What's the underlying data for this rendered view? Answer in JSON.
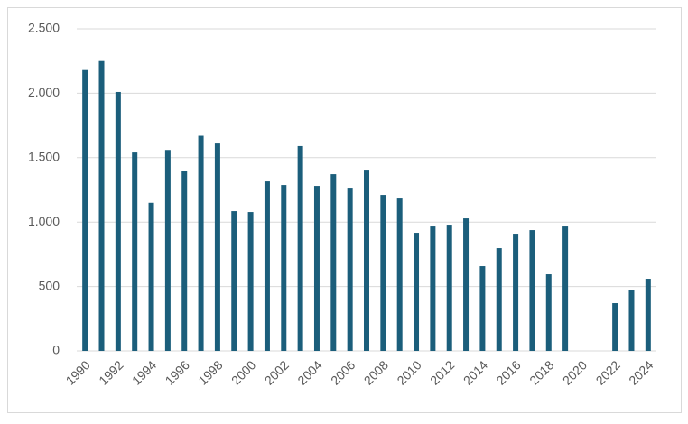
{
  "chart_data": {
    "type": "bar",
    "categories": [
      "1990",
      null,
      "1992",
      null,
      "1994",
      null,
      "1996",
      null,
      "1998",
      null,
      "2000",
      null,
      "2002",
      null,
      "2004",
      null,
      "2006",
      null,
      "2008",
      null,
      "2010",
      null,
      "2012",
      null,
      "2014",
      null,
      "2016",
      null,
      "2018",
      null,
      "2020",
      null,
      "2022",
      null,
      "2024"
    ],
    "values": [
      2180,
      2250,
      2010,
      1540,
      1150,
      1560,
      1395,
      1670,
      1610,
      1085,
      1078,
      1316,
      1288,
      1590,
      1281,
      1372,
      1267,
      1407,
      1211,
      1183,
      917,
      966,
      980,
      1029,
      658,
      798,
      910,
      938,
      595,
      966,
      null,
      null,
      371,
      476,
      560
    ],
    "color": "#1b5e7b",
    "ylim": [
      0,
      2500
    ],
    "yticks": [
      0,
      500,
      {
        "value": 1000,
        "label": "1.000"
      },
      {
        "value": 1500,
        "label": "1.500"
      },
      {
        "value": 2000,
        "label": "2.000"
      },
      {
        "value": 2500,
        "label": "2.500"
      }
    ],
    "grid": true
  }
}
